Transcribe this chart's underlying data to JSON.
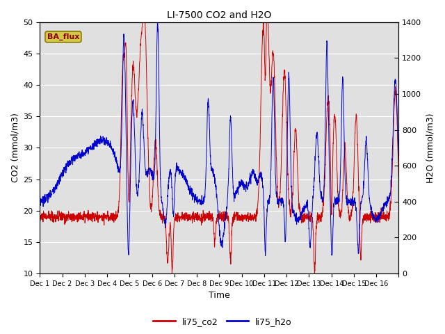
{
  "title": "LI-7500 CO2 and H2O",
  "xlabel": "Time",
  "ylabel_left": "CO2 (mmol/m3)",
  "ylabel_right": "H2O (mmol/m3)",
  "ylim_left": [
    10,
    50
  ],
  "ylim_right": [
    0,
    1400
  ],
  "yticks_left": [
    10,
    15,
    20,
    25,
    30,
    35,
    40,
    45,
    50
  ],
  "yticks_right": [
    0,
    200,
    400,
    600,
    800,
    1000,
    1200,
    1400
  ],
  "color_co2": "#cc0000",
  "color_h2o": "#0000cc",
  "bg_color": "#e0e0e0",
  "legend_label_co2": "li75_co2",
  "legend_label_h2o": "li75_h2o",
  "annotation_text": "BA_flux",
  "annotation_bg": "#d4c84a",
  "annotation_border": "#8a7a00",
  "n_days": 16,
  "n_points_per_day": 144,
  "seed": 42
}
